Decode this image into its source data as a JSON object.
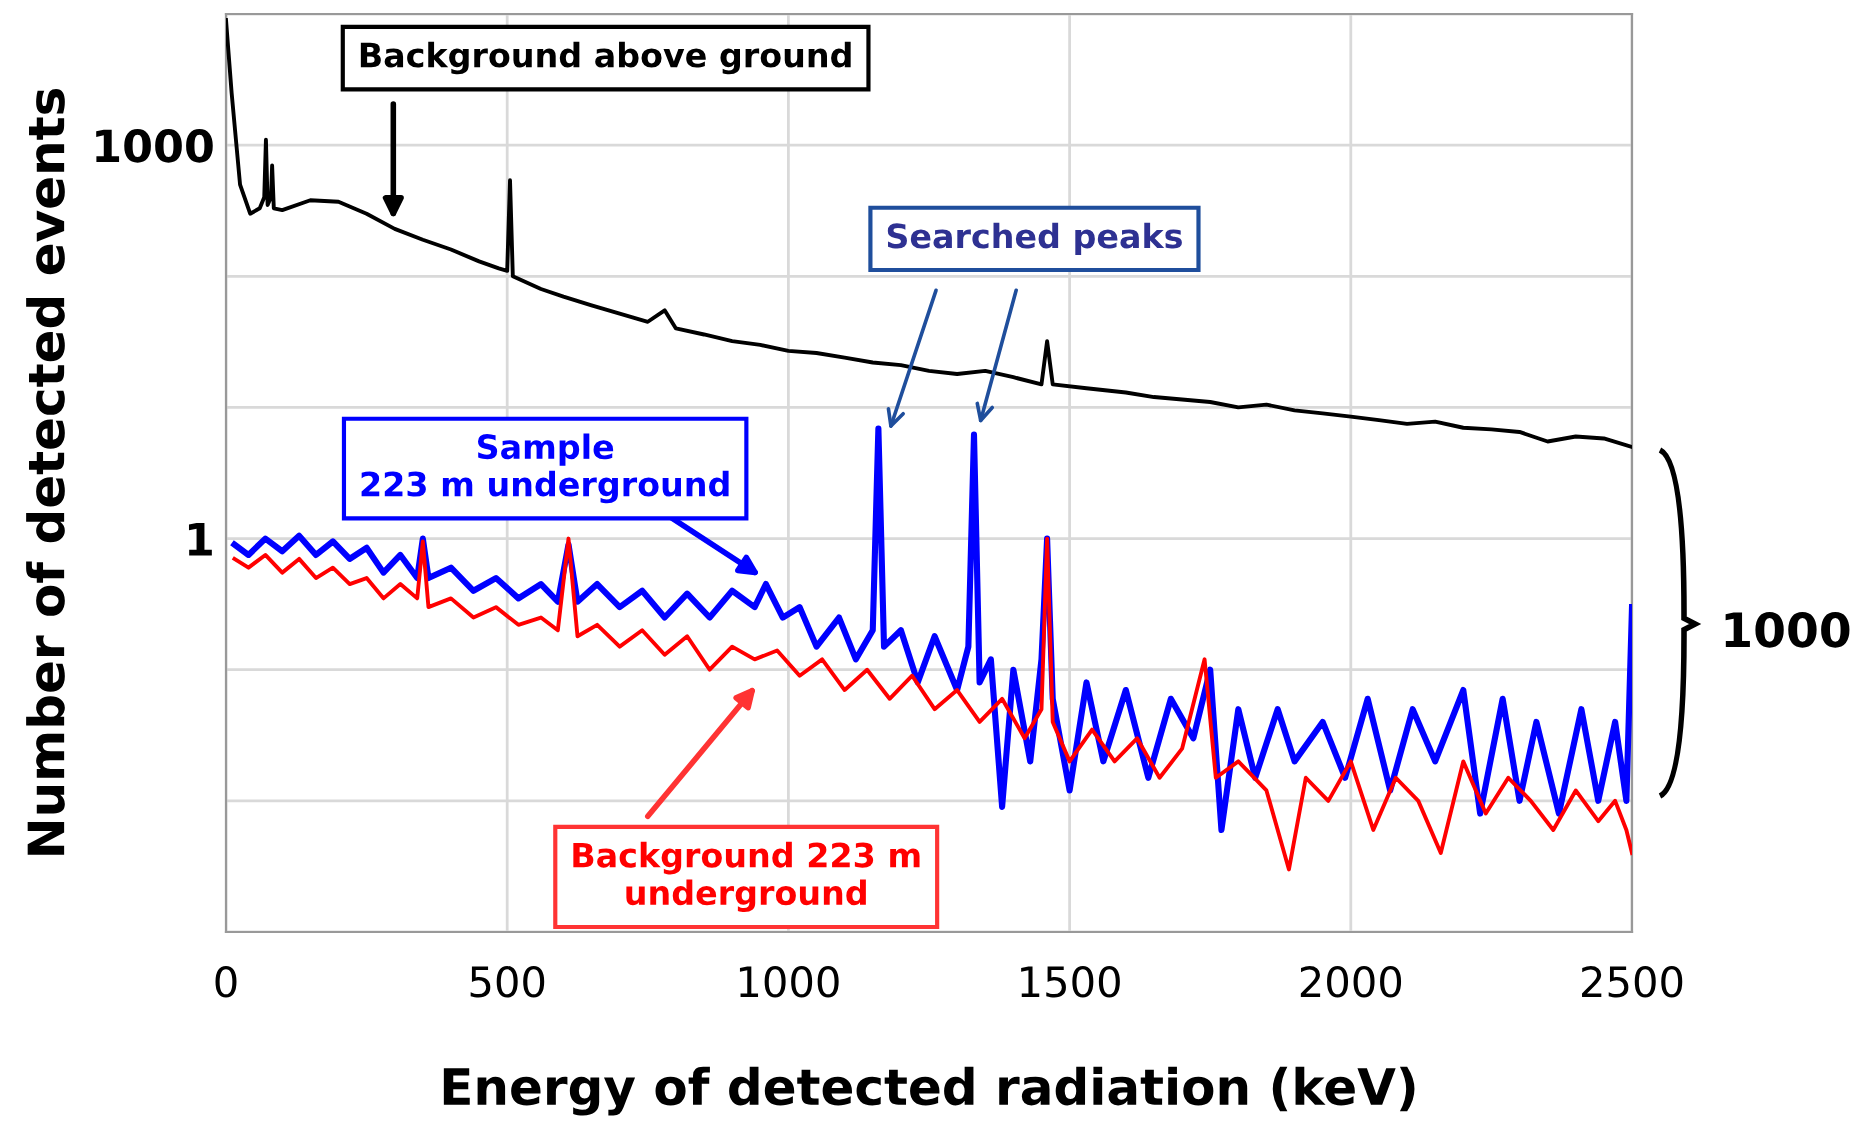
{
  "chart_data": {
    "type": "line",
    "xlabel": "Energy of detected radiation (keV)",
    "ylabel": "Number of detected events",
    "xlim": [
      0,
      2500
    ],
    "xticks": [
      0,
      500,
      1000,
      1500,
      2000,
      2500
    ],
    "ylim": [
      0.001,
      10000
    ],
    "log": "y",
    "yticks": [
      {
        "value": 0.001,
        "label": null
      },
      {
        "value": 0.01,
        "label": null
      },
      {
        "value": 0.1,
        "label": null
      },
      1,
      {
        "value": 10,
        "label": null
      },
      {
        "value": 100,
        "label": null
      },
      1000,
      {
        "value": 10000,
        "label": null
      }
    ],
    "grid": true,
    "legend": false,
    "series": [
      {
        "color": "#000000",
        "x": [
          0,
          10,
          25,
          43,
          60,
          68,
          71,
          74,
          80,
          82,
          85,
          100,
          150,
          200,
          250,
          300,
          350,
          400,
          450,
          485,
          500,
          505,
          510,
          560,
          600,
          650,
          700,
          750,
          780,
          800,
          850,
          900,
          950,
          1000,
          1050,
          1100,
          1150,
          1200,
          1250,
          1300,
          1350,
          1400,
          1450,
          1460,
          1470,
          1530,
          1600,
          1650,
          1700,
          1750,
          1800,
          1850,
          1900,
          1950,
          2000,
          2050,
          2100,
          2150,
          2200,
          2250,
          2300,
          2350,
          2400,
          2450,
          2500
        ],
        "values": [
          9000,
          2500,
          500,
          300,
          330,
          400,
          1100,
          350,
          400,
          700,
          330,
          320,
          380,
          370,
          300,
          230,
          190,
          160,
          130,
          115,
          110,
          540,
          100,
          80,
          70,
          60,
          52,
          45,
          55,
          40,
          36,
          32,
          30,
          27,
          26,
          24,
          22,
          21,
          19,
          18,
          19,
          17,
          15,
          32,
          15,
          14,
          13,
          12,
          11.5,
          11,
          10,
          10.5,
          9.5,
          9,
          8.5,
          8,
          7.5,
          7.8,
          7,
          6.8,
          6.5,
          5.5,
          6,
          5.8,
          5
        ]
      },
      {
        "color": "#0000ff",
        "x": [
          15,
          40,
          70,
          100,
          130,
          160,
          190,
          220,
          250,
          280,
          310,
          340,
          350,
          360,
          400,
          440,
          480,
          520,
          560,
          590,
          609,
          625,
          660,
          700,
          740,
          780,
          820,
          860,
          900,
          940,
          960,
          990,
          1020,
          1050,
          1090,
          1120,
          1150,
          1160,
          1170,
          1200,
          1230,
          1260,
          1300,
          1320,
          1330,
          1340,
          1360,
          1380,
          1400,
          1430,
          1450,
          1460,
          1470,
          1500,
          1530,
          1560,
          1600,
          1640,
          1680,
          1720,
          1750,
          1770,
          1800,
          1830,
          1870,
          1900,
          1950,
          1990,
          2030,
          2070,
          2110,
          2150,
          2200,
          2230,
          2270,
          2300,
          2330,
          2370,
          2410,
          2440,
          2470,
          2490,
          2500
        ],
        "values": [
          0.9,
          0.75,
          1.0,
          0.8,
          1.05,
          0.75,
          0.95,
          0.7,
          0.85,
          0.55,
          0.75,
          0.5,
          1.0,
          0.5,
          0.6,
          0.4,
          0.5,
          0.35,
          0.45,
          0.33,
          0.9,
          0.33,
          0.45,
          0.3,
          0.4,
          0.25,
          0.38,
          0.25,
          0.4,
          0.3,
          0.45,
          0.25,
          0.3,
          0.15,
          0.25,
          0.12,
          0.2,
          6.9,
          0.15,
          0.2,
          0.08,
          0.18,
          0.07,
          0.15,
          6.2,
          0.08,
          0.12,
          0.009,
          0.1,
          0.02,
          0.12,
          1.0,
          0.06,
          0.012,
          0.08,
          0.02,
          0.07,
          0.015,
          0.06,
          0.03,
          0.1,
          0.006,
          0.05,
          0.015,
          0.05,
          0.02,
          0.04,
          0.015,
          0.06,
          0.012,
          0.05,
          0.02,
          0.07,
          0.008,
          0.06,
          0.01,
          0.04,
          0.008,
          0.05,
          0.01,
          0.04,
          0.01,
          0.3
        ]
      },
      {
        "color": "#ff0000",
        "x": [
          15,
          40,
          70,
          100,
          130,
          160,
          190,
          220,
          250,
          280,
          310,
          340,
          350,
          360,
          400,
          440,
          480,
          520,
          560,
          590,
          609,
          625,
          660,
          700,
          740,
          780,
          820,
          860,
          900,
          940,
          980,
          1020,
          1060,
          1100,
          1140,
          1180,
          1220,
          1260,
          1300,
          1340,
          1380,
          1420,
          1450,
          1460,
          1470,
          1500,
          1540,
          1580,
          1620,
          1660,
          1700,
          1740,
          1760,
          1800,
          1850,
          1890,
          1920,
          1960,
          2000,
          2040,
          2080,
          2120,
          2160,
          2200,
          2240,
          2280,
          2320,
          2360,
          2400,
          2440,
          2470,
          2490,
          2500
        ],
        "values": [
          0.7,
          0.6,
          0.75,
          0.55,
          0.7,
          0.5,
          0.6,
          0.45,
          0.5,
          0.35,
          0.45,
          0.35,
          0.95,
          0.3,
          0.35,
          0.25,
          0.3,
          0.22,
          0.25,
          0.2,
          1.0,
          0.18,
          0.22,
          0.15,
          0.2,
          0.13,
          0.18,
          0.1,
          0.15,
          0.12,
          0.14,
          0.09,
          0.12,
          0.07,
          0.1,
          0.06,
          0.09,
          0.05,
          0.07,
          0.04,
          0.06,
          0.03,
          0.05,
          1.0,
          0.04,
          0.02,
          0.035,
          0.02,
          0.03,
          0.015,
          0.025,
          0.12,
          0.015,
          0.02,
          0.012,
          0.003,
          0.015,
          0.01,
          0.02,
          0.006,
          0.015,
          0.01,
          0.004,
          0.02,
          0.008,
          0.015,
          0.01,
          0.006,
          0.012,
          0.007,
          0.01,
          0.006,
          0.004
        ]
      }
    ],
    "annotations": [
      "Background above ground",
      "Searched peaks",
      "Sample\n223 m underground",
      "Background 223 m\nunderground",
      "1000"
    ]
  }
}
